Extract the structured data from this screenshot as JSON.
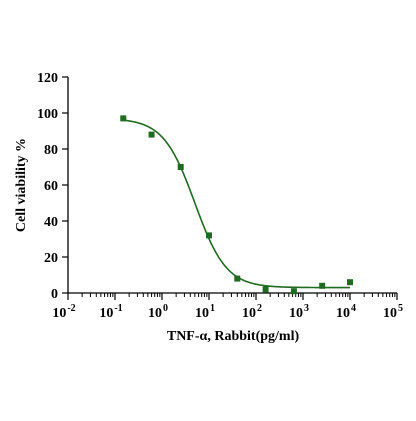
{
  "chart_data": {
    "type": "scatter",
    "title": "",
    "xlabel": "TNF-α, Rabbit(pg/ml)",
    "ylabel": "Cell viability %",
    "x_scale": "log10",
    "xlim": [
      0.01,
      100000
    ],
    "ylim": [
      0,
      120
    ],
    "x_tick_exponents": [
      "-2",
      "-1",
      "0",
      "1",
      "2",
      "3",
      "4",
      "5"
    ],
    "x_tick_base": "10",
    "y_ticks": [
      "0",
      "20",
      "40",
      "60",
      "80",
      "100",
      "120"
    ],
    "grid": false,
    "legend": "none",
    "series": [
      {
        "color": "#1f6b1f",
        "x": [
          0.15,
          0.6,
          2.5,
          10,
          40,
          160,
          640,
          2560,
          10000
        ],
        "y": [
          97,
          88,
          70,
          32,
          8,
          2,
          1,
          4,
          6
        ]
      }
    ],
    "fit_curve": {
      "model": "four-parameter logistic",
      "top": 97,
      "bottom": 3,
      "ic50": 5,
      "hill_slope": 1.3,
      "x_range": [
        0.15,
        10000
      ],
      "color": "#1f6b1f"
    }
  }
}
